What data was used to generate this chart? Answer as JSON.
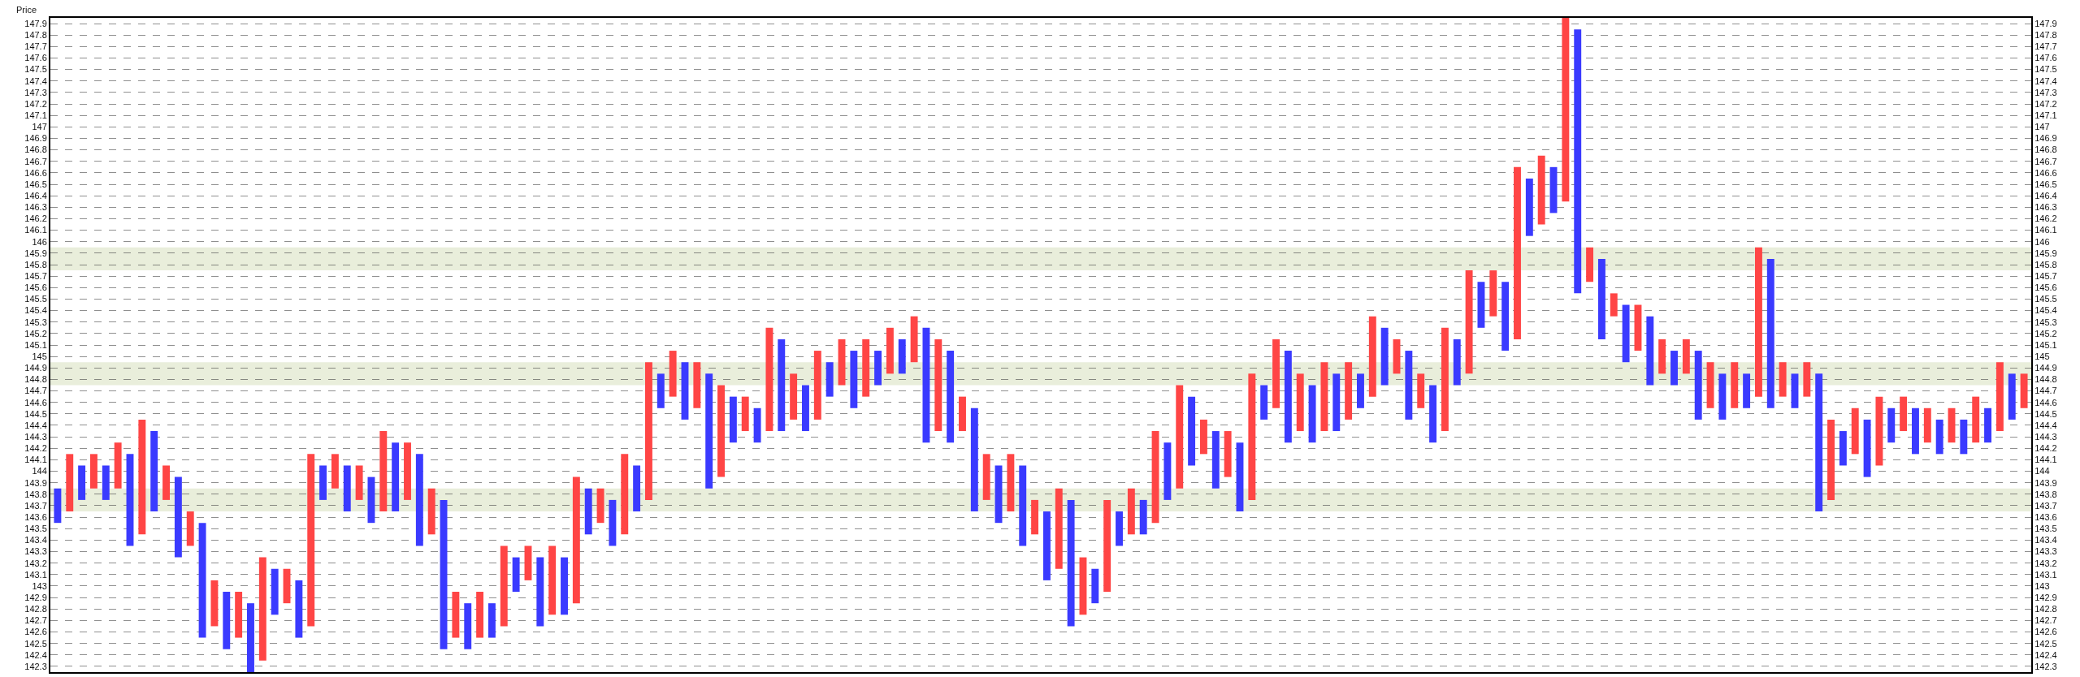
{
  "chart_data": {
    "type": "bar",
    "ylabel": "Price",
    "tick_labels": "y",
    "grid": "y",
    "ylim": [
      142.25,
      147.95
    ],
    "y2lim": [
      142.25,
      147.95
    ],
    "yticks": [
      142.3,
      142.4,
      142.5,
      142.6,
      142.7,
      142.8,
      142.9,
      143,
      143.1,
      143.2,
      143.3,
      143.4,
      143.5,
      143.6,
      143.7,
      143.8,
      143.9,
      144,
      144.1,
      144.2,
      144.3,
      144.4,
      144.5,
      144.6,
      144.7,
      144.8,
      144.9,
      145,
      145.1,
      145.2,
      145.3,
      145.4,
      145.5,
      145.6,
      145.7,
      145.8,
      145.9,
      146,
      146.1,
      146.2,
      146.3,
      146.4,
      146.5,
      146.6,
      146.7,
      146.8,
      146.9,
      147,
      147.1,
      147.2,
      147.3,
      147.4,
      147.5,
      147.6,
      147.7,
      147.8,
      147.9
    ],
    "y2ticks": [
      142.3,
      142.4,
      142.5,
      142.6,
      142.7,
      142.8,
      142.9,
      143,
      143.1,
      143.2,
      143.3,
      143.4,
      143.5,
      143.6,
      143.7,
      143.8,
      143.9,
      144,
      144.1,
      144.2,
      144.3,
      144.4,
      144.5,
      144.6,
      144.7,
      144.8,
      144.9,
      145,
      145.1,
      145.2,
      145.3,
      145.4,
      145.5,
      145.6,
      145.7,
      145.8,
      145.9,
      146,
      146.1,
      146.2,
      146.3,
      146.4,
      146.5,
      146.6,
      146.7,
      146.8,
      146.9,
      147,
      147.1,
      147.2,
      147.3,
      147.4,
      147.5,
      147.6,
      147.7,
      147.8,
      147.9
    ],
    "bands": [
      {
        "axis": "y",
        "from": 143.65,
        "to": 143.85,
        "color": "#e9eedb"
      },
      {
        "axis": "y",
        "from": 144.75,
        "to": 144.95,
        "color": "#e9eedb"
      },
      {
        "axis": "y",
        "from": 145.75,
        "to": 145.95,
        "color": "#e9eedb"
      }
    ],
    "categories": [
      null,
      null,
      null,
      null,
      null,
      null,
      null,
      null,
      null,
      null,
      null,
      null,
      null,
      null,
      null,
      null,
      null,
      null,
      null,
      null,
      null,
      null,
      null,
      null,
      null,
      null,
      null,
      null,
      null,
      null,
      null,
      null,
      null,
      null,
      null,
      null,
      null,
      null,
      null,
      null,
      null,
      null,
      null,
      null,
      null,
      null,
      null,
      null,
      null,
      null,
      null,
      null,
      null,
      null,
      null,
      null,
      null,
      null,
      null,
      null,
      null,
      null,
      null,
      null,
      null,
      null,
      null,
      null,
      null,
      null,
      null,
      null,
      null,
      null,
      null,
      null,
      null,
      null,
      null,
      null,
      null,
      null,
      null,
      null,
      null,
      null,
      null,
      null,
      null,
      null,
      null,
      null,
      null,
      null,
      null,
      null,
      null,
      null,
      null,
      null,
      null,
      null,
      null,
      null,
      null,
      null,
      null,
      null,
      null,
      null,
      null,
      null,
      null,
      null,
      null,
      null,
      null,
      null,
      null,
      null,
      null,
      null,
      null,
      null,
      null,
      null,
      null,
      null,
      null,
      null,
      null,
      null,
      null,
      null,
      null,
      null,
      null,
      null,
      null,
      null,
      null,
      null,
      null,
      null,
      null,
      null,
      null,
      null,
      null,
      null,
      null,
      null,
      null,
      null,
      null,
      null,
      null,
      null,
      null,
      null,
      null,
      null,
      null,
      null
    ],
    "base": [
      143.55,
      143.65,
      143.75,
      143.85,
      143.75,
      143.85,
      143.35,
      143.45,
      143.65,
      143.75,
      143.25,
      143.35,
      142.55,
      142.65,
      142.45,
      142.55,
      142.25,
      142.35,
      142.75,
      142.85,
      142.55,
      142.65,
      143.75,
      143.85,
      143.65,
      143.75,
      143.55,
      143.65,
      143.65,
      143.75,
      143.35,
      143.45,
      142.45,
      142.55,
      142.45,
      142.55,
      142.55,
      142.65,
      142.95,
      143.05,
      142.65,
      142.75,
      142.75,
      142.85,
      143.45,
      143.55,
      143.35,
      143.45,
      143.65,
      143.75,
      144.55,
      144.65,
      144.45,
      144.55,
      143.85,
      143.95,
      144.25,
      144.35,
      144.25,
      144.35,
      144.35,
      144.45,
      144.35,
      144.45,
      144.65,
      144.75,
      144.55,
      144.65,
      144.75,
      144.85,
      144.85,
      144.95,
      144.25,
      144.35,
      144.25,
      144.35,
      143.65,
      143.75,
      143.55,
      143.65,
      143.35,
      143.45,
      143.05,
      143.15,
      142.65,
      142.75,
      142.85,
      142.95,
      143.35,
      143.45,
      143.45,
      143.55,
      143.75,
      143.85,
      144.05,
      144.15,
      143.85,
      143.95,
      143.65,
      143.75,
      144.45,
      144.55,
      144.25,
      144.35,
      144.25,
      144.35,
      144.35,
      144.45,
      144.55,
      144.65,
      144.75,
      144.85,
      144.45,
      144.55,
      144.25,
      144.35,
      144.75,
      144.85,
      145.25,
      145.35,
      145.05,
      145.15,
      146.05,
      146.15,
      146.25,
      146.35,
      145.55,
      145.65,
      145.15,
      145.35,
      144.95,
      145.05,
      144.75,
      144.85,
      144.75,
      144.85,
      144.45,
      144.55,
      144.45,
      144.55,
      144.55,
      144.65,
      144.55,
      144.65,
      144.55,
      144.65,
      143.65,
      143.75,
      144.05,
      144.15,
      143.95,
      144.05,
      144.25,
      144.35,
      144.15,
      144.25,
      144.15,
      144.25,
      144.15,
      144.25,
      144.25,
      144.35,
      144.45,
      144.55
    ],
    "values": [
      0.3,
      0.5,
      0.3,
      0.3,
      0.3,
      0.4,
      0.8,
      1,
      0.7,
      0.3,
      0.7,
      0.3,
      1,
      0.4,
      0.5,
      0.4,
      0.6,
      0.9,
      0.4,
      0.3,
      0.5,
      1.5,
      0.3,
      0.3,
      0.4,
      0.3,
      0.4,
      0.7,
      0.6,
      0.5,
      0.8,
      0.4,
      1.3,
      0.4,
      0.4,
      0.4,
      0.3,
      0.7,
      0.3,
      0.3,
      0.6,
      0.6,
      0.5,
      1.1,
      0.4,
      0.3,
      0.4,
      0.7,
      0.4,
      1.2,
      0.3,
      0.4,
      0.5,
      0.4,
      1,
      0.8,
      0.4,
      0.3,
      0.3,
      0.9,
      0.8,
      0.4,
      0.4,
      0.6,
      0.3,
      0.4,
      0.5,
      0.5,
      0.3,
      0.4,
      0.3,
      0.4,
      1,
      0.8,
      0.8,
      0.3,
      0.9,
      0.4,
      0.5,
      0.5,
      0.7,
      0.3,
      0.6,
      0.7,
      1.1,
      0.5,
      0.3,
      0.8,
      0.3,
      0.4,
      0.3,
      0.8,
      0.5,
      0.9,
      0.6,
      0.3,
      0.5,
      0.4,
      0.6,
      1.1,
      0.3,
      0.6,
      0.8,
      0.5,
      0.5,
      0.6,
      0.5,
      0.5,
      0.3,
      0.7,
      0.5,
      0.3,
      0.6,
      0.3,
      0.5,
      0.9,
      0.4,
      0.9,
      0.4,
      0.4,
      0.6,
      1.5,
      0.5,
      0.6,
      0.4,
      1.6,
      2.3,
      0.3,
      0.7,
      0.2,
      0.5,
      0.4,
      0.6,
      0.3,
      0.3,
      0.3,
      0.6,
      0.4,
      0.4,
      0.4,
      0.3,
      1.3,
      1.3,
      0.3,
      0.3,
      0.3,
      1.2,
      0.7,
      0.3,
      0.4,
      0.5,
      0.6,
      0.3,
      0.3,
      0.4,
      0.3,
      0.3,
      0.3,
      0.3,
      0.4,
      0.3,
      0.6,
      0.4,
      0.3
    ],
    "colors": [
      "#3a3aff",
      "#ff4545",
      "#3a3aff",
      "#ff4545",
      "#3a3aff",
      "#ff4545",
      "#3a3aff",
      "#ff4545",
      "#3a3aff",
      "#ff4545",
      "#3a3aff",
      "#ff4545",
      "#3a3aff",
      "#ff4545",
      "#3a3aff",
      "#ff4545",
      "#3a3aff",
      "#ff4545",
      "#3a3aff",
      "#ff4545",
      "#3a3aff",
      "#ff4545",
      "#3a3aff",
      "#ff4545",
      "#3a3aff",
      "#ff4545",
      "#3a3aff",
      "#ff4545",
      "#3a3aff",
      "#ff4545",
      "#3a3aff",
      "#ff4545",
      "#3a3aff",
      "#ff4545",
      "#3a3aff",
      "#ff4545",
      "#3a3aff",
      "#ff4545",
      "#3a3aff",
      "#ff4545",
      "#3a3aff",
      "#ff4545",
      "#3a3aff",
      "#ff4545",
      "#3a3aff",
      "#ff4545",
      "#3a3aff",
      "#ff4545",
      "#3a3aff",
      "#ff4545",
      "#3a3aff",
      "#ff4545",
      "#3a3aff",
      "#ff4545",
      "#3a3aff",
      "#ff4545",
      "#3a3aff",
      "#ff4545",
      "#3a3aff",
      "#ff4545",
      "#3a3aff",
      "#ff4545",
      "#3a3aff",
      "#ff4545",
      "#3a3aff",
      "#ff4545",
      "#3a3aff",
      "#ff4545",
      "#3a3aff",
      "#ff4545",
      "#3a3aff",
      "#ff4545",
      "#3a3aff",
      "#ff4545",
      "#3a3aff",
      "#ff4545",
      "#3a3aff",
      "#ff4545",
      "#3a3aff",
      "#ff4545",
      "#3a3aff",
      "#ff4545",
      "#3a3aff",
      "#ff4545",
      "#3a3aff",
      "#ff4545",
      "#3a3aff",
      "#ff4545",
      "#3a3aff",
      "#ff4545",
      "#3a3aff",
      "#ff4545",
      "#3a3aff",
      "#ff4545",
      "#3a3aff",
      "#ff4545",
      "#3a3aff",
      "#ff4545",
      "#3a3aff",
      "#ff4545",
      "#3a3aff",
      "#ff4545",
      "#3a3aff",
      "#ff4545",
      "#3a3aff",
      "#ff4545",
      "#3a3aff",
      "#ff4545",
      "#3a3aff",
      "#ff4545",
      "#3a3aff",
      "#ff4545",
      "#3a3aff",
      "#ff4545",
      "#3a3aff",
      "#ff4545",
      "#3a3aff",
      "#ff4545",
      "#3a3aff",
      "#ff4545",
      "#3a3aff",
      "#ff4545",
      "#3a3aff",
      "#ff4545",
      "#3a3aff",
      "#ff4545",
      "#3a3aff",
      "#ff4545",
      "#3a3aff",
      "#ff4545",
      "#3a3aff",
      "#ff4545",
      "#3a3aff",
      "#ff4545",
      "#3a3aff",
      "#ff4545",
      "#3a3aff",
      "#ff4545",
      "#3a3aff",
      "#ff4545",
      "#3a3aff",
      "#ff4545",
      "#3a3aff",
      "#ff4545",
      "#3a3aff",
      "#ff4545",
      "#3a3aff",
      "#ff4545",
      "#3a3aff",
      "#ff4545",
      "#3a3aff",
      "#ff4545",
      "#3a3aff",
      "#ff4545",
      "#3a3aff",
      "#ff4545",
      "#3a3aff",
      "#ff4545",
      "#3a3aff",
      "#ff4545",
      "#3a3aff",
      "#ff4545",
      "#3a3aff",
      "#ff4545"
    ]
  }
}
